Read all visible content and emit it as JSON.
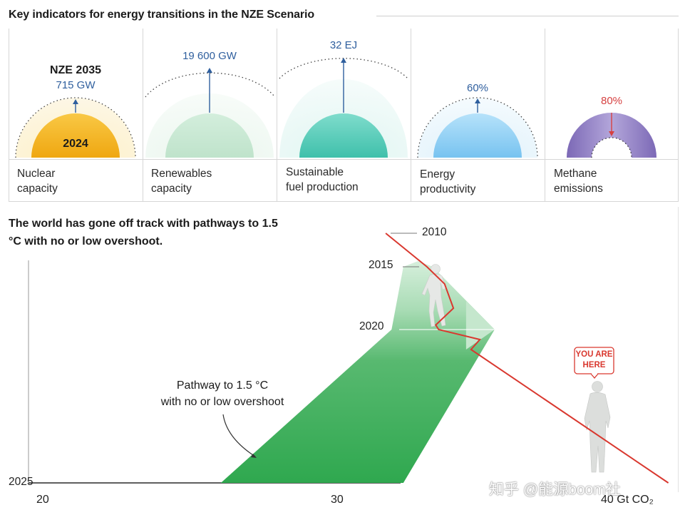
{
  "top_title": "Key indicators for energy transitions in the NZE Scenario",
  "indicators": [
    {
      "label_line1": "Nuclear",
      "label_line2": "capacity",
      "target_title": "NZE 2035",
      "target_value": "715 GW",
      "current_label": "2024",
      "color": "#f2b21b"
    },
    {
      "label_line1": "Renewables",
      "label_line2": "capacity",
      "target_value": "19 600 GW",
      "color": "#d4eedc"
    },
    {
      "label_line1": "Sustainable",
      "label_line2": "fuel production",
      "target_value": "32 EJ",
      "color": "#5ccfbe"
    },
    {
      "label_line1": "Energy",
      "label_line2": "productivity",
      "target_value": "60%",
      "color": "#8fd0f5"
    },
    {
      "label_line1": "Methane",
      "label_line2": "emissions",
      "target_value": "80%",
      "color": "#8e7bc2"
    }
  ],
  "chart_data": {
    "type": "area",
    "title": "The world has gone off track with pathways to 1.5 °C with no or low overshoot.",
    "x_axis": {
      "ticks": [
        "20",
        "30",
        "40 Gt CO₂"
      ],
      "range": [
        20,
        40
      ],
      "unit": "Gt CO₂"
    },
    "y_axis": {
      "years": [
        "2010",
        "2015",
        "2020",
        "2025"
      ],
      "range": [
        2010,
        2025
      ]
    },
    "pathway": {
      "label_line1": "Pathway to 1.5 °C",
      "label_line2": "with no or low overshoot",
      "color": "#3aaa5a",
      "band": [
        {
          "year": 2015,
          "low": 32.2,
          "high": 33.2
        },
        {
          "year": 2020,
          "low": 31.8,
          "high": 35.3
        },
        {
          "year": 2025,
          "low": 26.0,
          "high": 32.2
        }
      ]
    },
    "actual_emissions": {
      "color": "#d9382f",
      "points": [
        {
          "year": 2010,
          "value": 31.6
        },
        {
          "year": 2015,
          "value": 33.0
        },
        {
          "year": 2017,
          "value": 33.6
        },
        {
          "year": 2020,
          "value": 33.4
        },
        {
          "year": 2021,
          "value": 34.5
        },
        {
          "year": 2025,
          "value": 41.2
        }
      ]
    },
    "annotation": {
      "line1": "YOU ARE",
      "line2": "HERE",
      "color": "#d9382f"
    }
  },
  "watermark": "知乎 @能源boom社"
}
